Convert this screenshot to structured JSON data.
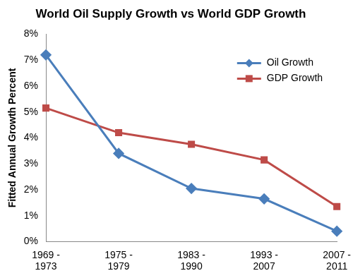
{
  "chart_data": {
    "type": "line",
    "title": "World Oil Supply Growth vs World GDP Growth",
    "y_label": "Fitted Annual Growth Percent",
    "categories": [
      "1969 - 1973",
      "1975 - 1979",
      "1983 - 1990",
      "1993 - 2007",
      "2007 - 2011"
    ],
    "series": [
      {
        "name": "Oil Growth",
        "color": "#4a7ebb",
        "marker": "diamond",
        "values": [
          7.2,
          3.4,
          2.05,
          1.65,
          0.4
        ]
      },
      {
        "name": "GDP Growth",
        "color": "#be4b48",
        "marker": "square",
        "values": [
          5.15,
          4.2,
          3.75,
          3.15,
          1.35
        ]
      }
    ],
    "ylim": [
      0,
      8
    ],
    "yticks": [
      {
        "value": 0,
        "label": "0%"
      },
      {
        "value": 1,
        "label": "1%"
      },
      {
        "value": 2,
        "label": "2%"
      },
      {
        "value": 3,
        "label": "3%"
      },
      {
        "value": 4,
        "label": "4%"
      },
      {
        "value": 5,
        "label": "5%"
      },
      {
        "value": 6,
        "label": "6%"
      },
      {
        "value": 7,
        "label": "7%"
      },
      {
        "value": 8,
        "label": "8%"
      }
    ],
    "grid": false,
    "legend": "upper right"
  }
}
